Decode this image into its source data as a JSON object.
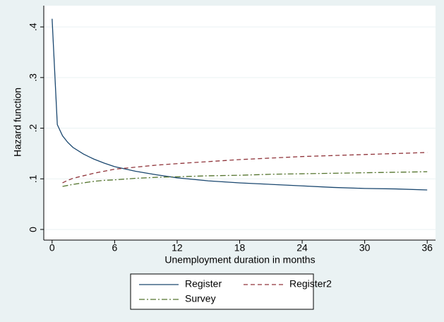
{
  "chart_data": {
    "type": "line",
    "x_label": "Unemployment duration in months",
    "y_label": "Hazard function",
    "x": [
      0,
      0.5,
      1,
      1.5,
      2,
      3,
      4,
      5,
      6,
      8,
      10,
      12,
      15,
      18,
      21,
      24,
      27,
      30,
      33,
      36
    ],
    "series": [
      {
        "name": "Register",
        "color": "#1a476f",
        "style": "solid",
        "values": [
          0.416,
          0.207,
          0.185,
          0.172,
          0.162,
          0.149,
          0.139,
          0.131,
          0.124,
          0.115,
          0.108,
          0.102,
          0.096,
          0.092,
          0.089,
          0.086,
          0.083,
          0.081,
          0.08,
          0.078
        ]
      },
      {
        "name": "Register2",
        "color": "#90353b",
        "style": "dash",
        "values": [
          null,
          null,
          0.092,
          0.097,
          0.101,
          0.106,
          0.111,
          0.115,
          0.119,
          0.123,
          0.127,
          0.13,
          0.134,
          0.138,
          0.141,
          0.144,
          0.146,
          0.148,
          0.15,
          0.152
        ]
      },
      {
        "name": "Survey",
        "color": "#55752f",
        "style": "dashdot",
        "values": [
          null,
          null,
          0.085,
          0.087,
          0.089,
          0.092,
          0.095,
          0.097,
          0.098,
          0.101,
          0.103,
          0.104,
          0.106,
          0.107,
          0.109,
          0.11,
          0.111,
          0.112,
          0.113,
          0.114
        ]
      }
    ],
    "xlim": [
      -0.8,
      36.8
    ],
    "ylim": [
      -0.021,
      0.442
    ],
    "xticks": [
      0,
      6,
      12,
      18,
      24,
      30,
      36
    ],
    "yticks": [
      0,
      {
        "value": 0.1,
        "label": ".1"
      },
      {
        "value": 0.2,
        "label": ".2"
      },
      {
        "value": 0.3,
        "label": ".3"
      },
      {
        "value": 0.4,
        "label": ".4"
      }
    ],
    "grid": true,
    "legend": "bottom"
  }
}
